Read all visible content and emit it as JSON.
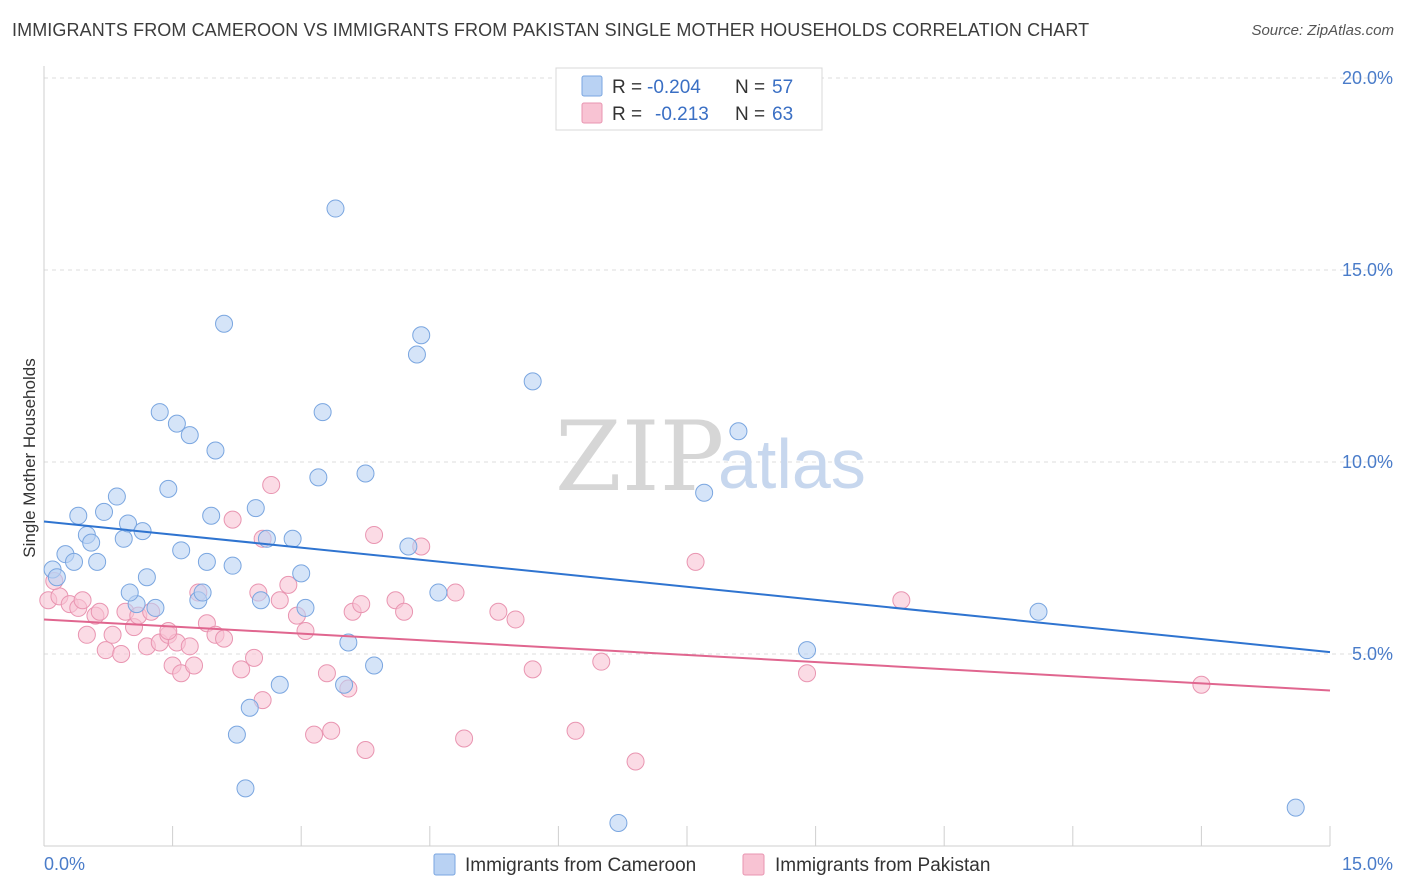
{
  "title": "IMMIGRANTS FROM CAMEROON VS IMMIGRANTS FROM PAKISTAN SINGLE MOTHER HOUSEHOLDS CORRELATION CHART",
  "source": "Source: ZipAtlas.com",
  "watermark": {
    "zip": "ZIP",
    "atlas": "atlas"
  },
  "legend": {
    "r_label": "R =",
    "n_label": "N =",
    "cameroon": {
      "r": "-0.204",
      "n": "57"
    },
    "pakistan": {
      "r": "-0.213",
      "n": "63"
    }
  },
  "bottom_legend": {
    "cameroon": "Immigrants from Cameroon",
    "pakistan": "Immigrants from Pakistan"
  },
  "colors": {
    "cameroon_fill": "#b9d2f3",
    "cameroon_stroke": "#7aa6e0",
    "cameroon_line": "#2f74d0",
    "pakistan_fill": "#f8c3d3",
    "pakistan_stroke": "#e995b1",
    "pakistan_line": "#e0668f",
    "tick": "#4a7cc9",
    "grid": "#dcdcdc"
  },
  "chart_data": {
    "type": "scatter",
    "title": "IMMIGRANTS FROM CAMEROON VS IMMIGRANTS FROM PAKISTAN SINGLE MOTHER HOUSEHOLDS CORRELATION CHART",
    "xlabel": "",
    "ylabel": "Single Mother Households",
    "xlim": [
      0,
      15
    ],
    "ylim": [
      0,
      20
    ],
    "x_tick_labels": [
      "0.0%",
      "15.0%"
    ],
    "y_ticks": [
      5,
      10,
      15,
      20
    ],
    "y_tick_labels": [
      "5.0%",
      "10.0%",
      "15.0%",
      "20.0%"
    ],
    "grid": true,
    "legend_position": "top-center",
    "series": [
      {
        "name": "Immigrants from Cameroon",
        "points": [
          [
            0.1,
            7.2
          ],
          [
            0.25,
            7.6
          ],
          [
            0.35,
            7.4
          ],
          [
            0.4,
            8.6
          ],
          [
            0.5,
            8.1
          ],
          [
            0.55,
            7.9
          ],
          [
            0.62,
            7.4
          ],
          [
            0.7,
            8.7
          ],
          [
            0.85,
            9.1
          ],
          [
            0.93,
            8.0
          ],
          [
            0.98,
            8.4
          ],
          [
            1.15,
            8.2
          ],
          [
            1.2,
            7.0
          ],
          [
            1.08,
            6.3
          ],
          [
            1.3,
            6.2
          ],
          [
            1.35,
            11.3
          ],
          [
            1.45,
            9.3
          ],
          [
            1.55,
            11.0
          ],
          [
            1.6,
            7.7
          ],
          [
            1.7,
            10.7
          ],
          [
            1.8,
            6.4
          ],
          [
            1.9,
            7.4
          ],
          [
            1.95,
            8.6
          ],
          [
            2.0,
            10.3
          ],
          [
            2.1,
            13.6
          ],
          [
            2.25,
            2.9
          ],
          [
            2.35,
            1.5
          ],
          [
            2.4,
            3.6
          ],
          [
            2.47,
            8.8
          ],
          [
            2.53,
            6.4
          ],
          [
            2.6,
            8.0
          ],
          [
            2.75,
            4.2
          ],
          [
            2.9,
            8.0
          ],
          [
            3.05,
            6.2
          ],
          [
            3.2,
            9.6
          ],
          [
            3.25,
            11.3
          ],
          [
            3.4,
            16.6
          ],
          [
            3.5,
            4.2
          ],
          [
            3.55,
            5.3
          ],
          [
            3.75,
            9.7
          ],
          [
            3.85,
            4.7
          ],
          [
            4.25,
            7.8
          ],
          [
            4.35,
            12.8
          ],
          [
            4.4,
            13.3
          ],
          [
            4.6,
            6.6
          ],
          [
            1.85,
            6.6
          ],
          [
            5.7,
            12.1
          ],
          [
            6.7,
            0.6
          ],
          [
            7.7,
            9.2
          ],
          [
            8.1,
            10.8
          ],
          [
            8.9,
            5.1
          ],
          [
            11.6,
            6.1
          ],
          [
            14.6,
            1.0
          ],
          [
            0.15,
            7.0
          ],
          [
            1.0,
            6.6
          ],
          [
            3.0,
            7.1
          ],
          [
            2.2,
            7.3
          ]
        ]
      },
      {
        "name": "Immigrants from Pakistan",
        "points": [
          [
            0.05,
            6.4
          ],
          [
            0.18,
            6.5
          ],
          [
            0.3,
            6.3
          ],
          [
            0.4,
            6.2
          ],
          [
            0.45,
            6.4
          ],
          [
            0.5,
            5.5
          ],
          [
            0.6,
            6.0
          ],
          [
            0.65,
            6.1
          ],
          [
            0.72,
            5.1
          ],
          [
            0.8,
            5.5
          ],
          [
            0.9,
            5.0
          ],
          [
            0.95,
            6.1
          ],
          [
            1.05,
            5.7
          ],
          [
            1.1,
            6.0
          ],
          [
            1.2,
            5.2
          ],
          [
            1.25,
            6.1
          ],
          [
            1.35,
            5.3
          ],
          [
            1.45,
            5.5
          ],
          [
            1.5,
            4.7
          ],
          [
            1.55,
            5.3
          ],
          [
            1.6,
            4.5
          ],
          [
            1.7,
            5.2
          ],
          [
            1.75,
            4.7
          ],
          [
            1.8,
            6.6
          ],
          [
            1.9,
            5.8
          ],
          [
            2.0,
            5.5
          ],
          [
            2.1,
            5.4
          ],
          [
            2.2,
            8.5
          ],
          [
            2.3,
            4.6
          ],
          [
            2.45,
            4.9
          ],
          [
            2.5,
            6.6
          ],
          [
            2.55,
            3.8
          ],
          [
            2.65,
            9.4
          ],
          [
            2.75,
            6.4
          ],
          [
            2.85,
            6.8
          ],
          [
            2.95,
            6.0
          ],
          [
            3.05,
            5.6
          ],
          [
            3.15,
            2.9
          ],
          [
            3.3,
            4.5
          ],
          [
            3.35,
            3.0
          ],
          [
            3.55,
            4.1
          ],
          [
            3.6,
            6.1
          ],
          [
            3.7,
            6.3
          ],
          [
            3.75,
            2.5
          ],
          [
            3.85,
            8.1
          ],
          [
            4.1,
            6.4
          ],
          [
            4.2,
            6.1
          ],
          [
            4.4,
            7.8
          ],
          [
            4.8,
            6.6
          ],
          [
            4.9,
            2.8
          ],
          [
            5.3,
            6.1
          ],
          [
            5.5,
            5.9
          ],
          [
            5.7,
            4.6
          ],
          [
            6.2,
            3.0
          ],
          [
            6.5,
            4.8
          ],
          [
            6.9,
            2.2
          ],
          [
            7.6,
            7.4
          ],
          [
            8.9,
            4.5
          ],
          [
            10.0,
            6.4
          ],
          [
            13.5,
            4.2
          ],
          [
            0.12,
            6.9
          ],
          [
            2.55,
            8.0
          ],
          [
            1.45,
            5.6
          ]
        ]
      }
    ],
    "trendlines": [
      {
        "series": "Immigrants from Cameroon",
        "x": [
          0,
          15
        ],
        "y": [
          8.45,
          5.05
        ]
      },
      {
        "series": "Immigrants from Pakistan",
        "x": [
          0,
          15
        ],
        "y": [
          5.9,
          4.05
        ]
      }
    ]
  }
}
